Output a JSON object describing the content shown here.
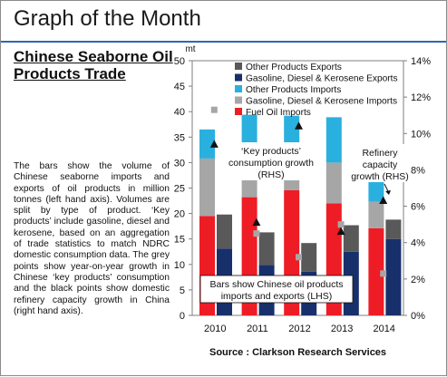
{
  "header": {
    "title": "Graph of the Month"
  },
  "panel": {
    "subtitle": "Chinese Seaborne Oil Products Trade",
    "description": "The bars show the volume of Chinese seaborne imports and exports of oil products in million tonnes (left hand axis). Volumes are split by type of product. ‘Key products’ include gasoline, diesel and kerosene, based on an aggregation of trade statistics to match NDRC domestic consumption data. The grey points show year-on-year growth in Chinese ‘key products’ consumption and the black points show domestic refinery capacity growth in China (right hand axis).",
    "source": "Source : Clarkson Research Services"
  },
  "colors": {
    "other_exports": "#595959",
    "gas_exports": "#17306b",
    "other_imports": "#2ab0de",
    "gas_imports": "#a6a6a6",
    "fuel_imports": "#ee1c25",
    "grey_point": "#a6a6a6",
    "black_point": "#111111",
    "header_rule": "#2a6ab3"
  },
  "chart_data": {
    "type": "bar",
    "categories": [
      "2010",
      "2011",
      "2012",
      "2013",
      "2014"
    ],
    "left_axis": {
      "label": "mt",
      "min": 0,
      "max": 50,
      "ticks": [
        "0",
        "5",
        "10",
        "15",
        "20",
        "25",
        "30",
        "35",
        "40",
        "45",
        "50"
      ]
    },
    "right_axis": {
      "min": 0,
      "max": 14,
      "ticks": [
        "0%",
        "2%",
        "4%",
        "6%",
        "8%",
        "10%",
        "12%",
        "14%"
      ]
    },
    "legend": [
      {
        "name": "Other Products Exports",
        "key": "other_exports"
      },
      {
        "name": "Gasoline, Diesel & Kerosene Exports",
        "key": "gas_exports"
      },
      {
        "name": "Other Products Imports",
        "key": "other_imports"
      },
      {
        "name": "Gasoline, Diesel & Kerosene Imports",
        "key": "gas_imports"
      },
      {
        "name": "Fuel Oil Imports",
        "key": "fuel_imports"
      }
    ],
    "legend_position": "top-right",
    "imports": {
      "fuel_imports": [
        19.5,
        23.2,
        24.6,
        22.0,
        17.1
      ],
      "gas_imports": [
        11.3,
        6.5,
        5.6,
        8.0,
        5.2
      ],
      "other_imports": [
        5.7,
        9.7,
        9.0,
        8.9,
        7.0
      ]
    },
    "exports": {
      "gas_exports": [
        13.1,
        9.9,
        8.6,
        12.5,
        15.0
      ],
      "other_exports": [
        6.7,
        6.4,
        5.6,
        5.2,
        3.8
      ]
    },
    "consumption_growth_pct": [
      11.3,
      4.5,
      3.2,
      5.0,
      2.3
    ],
    "refinery_growth_pct": [
      9.4,
      5.1,
      10.4,
      4.6,
      6.3
    ],
    "annotations": [
      {
        "id": "consumption",
        "text": [
          "‘Key products’",
          "consumption growth",
          "(RHS)"
        ]
      },
      {
        "id": "refinery",
        "text": [
          "Refinery",
          "capacity",
          "growth (RHS)"
        ]
      },
      {
        "id": "bars",
        "text": [
          "Bars show Chinese oil products",
          "imports and exports (LHS)"
        ]
      }
    ]
  }
}
